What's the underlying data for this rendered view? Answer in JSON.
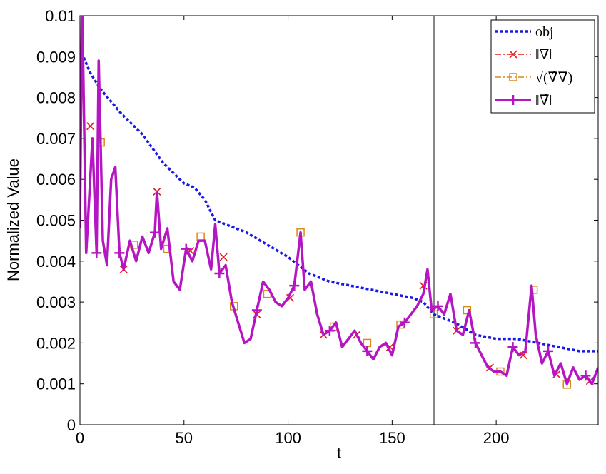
{
  "chart_data": {
    "type": "line",
    "xlabel": "t",
    "ylabel": "Normalized Value",
    "xlim": [
      0,
      249
    ],
    "ylim": [
      0,
      0.01
    ],
    "xticks": [
      0,
      50,
      100,
      150,
      200
    ],
    "yticks": [
      0,
      0.001,
      0.002,
      0.003,
      0.004,
      0.005,
      0.006,
      0.007,
      0.008,
      0.009,
      0.01
    ],
    "vline": 170,
    "vline_color": "#888888",
    "legend": "upper right",
    "series": [
      {
        "name": "obj",
        "color": "#1a1ae6",
        "style": "dotted",
        "x": [
          0,
          5,
          10,
          20,
          30,
          40,
          50,
          55,
          60,
          65,
          70,
          80,
          90,
          100,
          110,
          120,
          130,
          140,
          150,
          160,
          165,
          170,
          180,
          190,
          200,
          210,
          220,
          230,
          240,
          249
        ],
        "values": [
          0.0092,
          0.0086,
          0.0082,
          0.0076,
          0.0071,
          0.0064,
          0.0059,
          0.0058,
          0.0055,
          0.005,
          0.0049,
          0.0047,
          0.0044,
          0.0041,
          0.0037,
          0.0035,
          0.0034,
          0.0033,
          0.0032,
          0.0031,
          0.003,
          0.0027,
          0.0025,
          0.0022,
          0.0021,
          0.0021,
          0.002,
          0.0019,
          0.0018,
          0.0018
        ]
      },
      {
        "name": "‖∇‖",
        "color": "#e81c1c",
        "marker": "x",
        "x": [
          5,
          21,
          37,
          53,
          69,
          85,
          101,
          117,
          133,
          149,
          165,
          181,
          197,
          213,
          229,
          245
        ],
        "values": [
          0.0073,
          0.0038,
          0.0057,
          0.00425,
          0.0041,
          0.0027,
          0.0031,
          0.0022,
          0.0022,
          0.0019,
          0.0034,
          0.0023,
          0.0014,
          0.0017,
          0.00123,
          0.00107
        ]
      },
      {
        "name": "√(∇̂∇)",
        "color": "#d88a1e",
        "marker": "square",
        "x": [
          10,
          26,
          42,
          58,
          74,
          90,
          106,
          122,
          138,
          154,
          170,
          186,
          202,
          218,
          234
        ],
        "values": [
          0.0069,
          0.0044,
          0.0043,
          0.0046,
          0.0029,
          0.0032,
          0.0047,
          0.0024,
          0.002,
          0.00245,
          0.0027,
          0.0028,
          0.0013,
          0.0033,
          0.00098
        ]
      },
      {
        "name": "‖∇̂‖",
        "color": "#b515c2",
        "marker": "plus",
        "x": [
          0,
          1,
          3,
          6,
          8,
          9,
          11,
          13,
          15,
          17,
          19,
          21,
          24,
          27,
          30,
          33,
          36,
          37,
          39,
          42,
          45,
          48,
          51,
          54,
          57,
          60,
          63,
          65,
          67,
          70,
          73,
          76,
          79,
          82,
          85,
          88,
          91,
          94,
          97,
          100,
          103,
          106,
          108,
          111,
          114,
          117,
          120,
          123,
          126,
          129,
          132,
          135,
          138,
          141,
          144,
          147,
          150,
          153,
          156,
          159,
          162,
          165,
          167,
          169,
          172,
          175,
          178,
          181,
          184,
          187,
          190,
          193,
          196,
          199,
          202,
          205,
          208,
          211,
          214,
          217,
          219,
          222,
          225,
          228,
          231,
          234,
          237,
          240,
          243,
          246,
          249
        ],
        "values": [
          0.0048,
          0.0105,
          0.0042,
          0.007,
          0.0042,
          0.0089,
          0.0045,
          0.0039,
          0.006,
          0.0063,
          0.0042,
          0.0038,
          0.0045,
          0.004,
          0.0046,
          0.0042,
          0.0047,
          0.0057,
          0.0043,
          0.0048,
          0.0035,
          0.0033,
          0.0043,
          0.004,
          0.0045,
          0.0045,
          0.0038,
          0.0049,
          0.0037,
          0.0039,
          0.003,
          0.0025,
          0.002,
          0.0021,
          0.0028,
          0.0035,
          0.0033,
          0.003,
          0.0029,
          0.0031,
          0.0034,
          0.0047,
          0.0033,
          0.0035,
          0.0027,
          0.0022,
          0.0023,
          0.0025,
          0.0019,
          0.0021,
          0.0023,
          0.002,
          0.0018,
          0.0016,
          0.0019,
          0.002,
          0.0017,
          0.0024,
          0.0025,
          0.0027,
          0.0029,
          0.0032,
          0.0038,
          0.0028,
          0.0029,
          0.0027,
          0.0032,
          0.0023,
          0.0022,
          0.0028,
          0.002,
          0.0017,
          0.0014,
          0.0013,
          0.0013,
          0.0012,
          0.0019,
          0.0017,
          0.0018,
          0.0034,
          0.0022,
          0.0015,
          0.0018,
          0.0012,
          0.0015,
          0.001,
          0.0014,
          0.0011,
          0.0012,
          0.001,
          0.0014
        ]
      }
    ]
  }
}
